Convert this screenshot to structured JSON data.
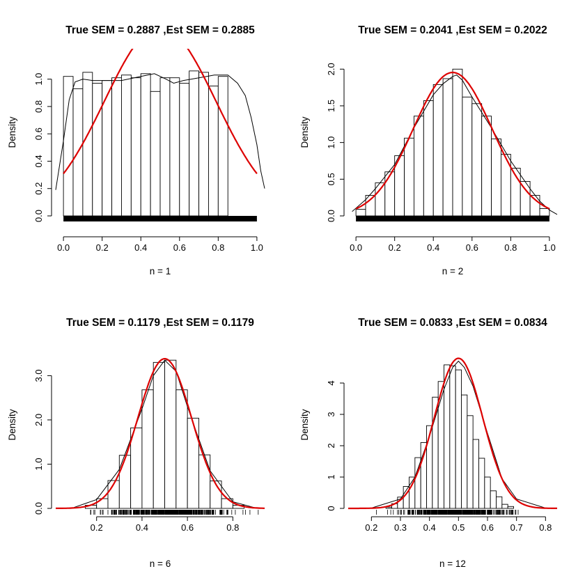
{
  "chart_data": [
    {
      "type": "bar",
      "title": "True SEM = 0.2887 ,Est SEM =  0.2885",
      "xlabel": "n = 1",
      "ylabel": "Density",
      "xlim": [
        -0.04,
        1.04
      ],
      "ylim": [
        0,
        1.1
      ],
      "xticks": [
        "0.0",
        "0.2",
        "0.4",
        "0.6",
        "0.8",
        "1.0"
      ],
      "yticks": [
        "0.0",
        "0.2",
        "0.4",
        "0.6",
        "0.8",
        "1.0"
      ],
      "bins_start": 0.0,
      "bin_width": 0.05,
      "values": [
        1.02,
        0.93,
        1.05,
        0.97,
        0.99,
        1.01,
        1.03,
        1.01,
        1.04,
        0.91,
        1.01,
        1.01,
        0.97,
        1.06,
        1.05,
        0.95,
        1.02
      ],
      "normal_curve": {
        "mean": 0.5,
        "sd": 0.2887,
        "color": "#dd0000"
      },
      "density_curve": {
        "x": [
          -0.04,
          0.0,
          0.03,
          0.06,
          0.1,
          0.15,
          0.2,
          0.3,
          0.4,
          0.47,
          0.53,
          0.57,
          0.62,
          0.7,
          0.78,
          0.85,
          0.9,
          0.94,
          0.97,
          1.0,
          1.02,
          1.04
        ],
        "y": [
          0.19,
          0.55,
          0.85,
          0.98,
          1.0,
          0.99,
          0.99,
          0.99,
          1.02,
          1.04,
          1.0,
          0.97,
          0.99,
          1.01,
          1.03,
          1.03,
          0.97,
          0.88,
          0.72,
          0.52,
          0.33,
          0.2
        ]
      },
      "rug": "dense"
    },
    {
      "type": "bar",
      "title": "True SEM = 0.2041 ,Est SEM =  0.2022",
      "xlabel": "n = 2",
      "ylabel": "Density",
      "xlim": [
        -0.04,
        1.04
      ],
      "ylim": [
        0,
        2.05
      ],
      "xticks": [
        "0.0",
        "0.2",
        "0.4",
        "0.6",
        "0.8",
        "1.0"
      ],
      "yticks": [
        "0.0",
        "0.5",
        "1.0",
        "1.5",
        "2.0"
      ],
      "bins_start": 0.0,
      "bin_width": 0.05,
      "values": [
        0.09,
        0.28,
        0.45,
        0.6,
        0.82,
        1.06,
        1.36,
        1.57,
        1.79,
        1.87,
        2.0,
        1.62,
        1.53,
        1.36,
        1.05,
        0.84,
        0.65,
        0.47,
        0.28,
        0.1
      ],
      "normal_curve": {
        "mean": 0.5,
        "sd": 0.2041,
        "color": "#dd0000"
      },
      "density_curve": {
        "x": [
          -0.02,
          0.05,
          0.1,
          0.2,
          0.3,
          0.4,
          0.45,
          0.5,
          0.52,
          0.55,
          0.6,
          0.7,
          0.8,
          0.9,
          0.95,
          1.0,
          1.04
        ],
        "y": [
          0.06,
          0.22,
          0.37,
          0.7,
          1.2,
          1.65,
          1.8,
          1.9,
          1.92,
          1.85,
          1.62,
          1.2,
          0.75,
          0.37,
          0.2,
          0.08,
          0.02
        ]
      },
      "rug": "dense"
    },
    {
      "type": "bar",
      "title": "True SEM = 0.1179 ,Est SEM =  0.1179",
      "xlabel": "n = 6",
      "ylabel": "Density",
      "xlim": [
        0.02,
        0.94
      ],
      "ylim": [
        0,
        3.4
      ],
      "xticks": [
        "0.2",
        "0.4",
        "0.6",
        "0.8"
      ],
      "yticks": [
        "0.0",
        "1.0",
        "2.0",
        "3.0"
      ],
      "bins_start": 0.15,
      "bin_width": 0.05,
      "values": [
        0.07,
        0.22,
        0.63,
        1.2,
        1.82,
        2.68,
        3.3,
        3.35,
        2.68,
        2.04,
        1.21,
        0.62,
        0.22,
        0.07
      ],
      "normal_curve": {
        "mean": 0.5,
        "sd": 0.1179,
        "color": "#dd0000"
      },
      "density_curve": {
        "x": [
          0.1,
          0.2,
          0.3,
          0.4,
          0.45,
          0.5,
          0.55,
          0.6,
          0.7,
          0.8,
          0.9
        ],
        "y": [
          0.02,
          0.2,
          0.88,
          2.25,
          3.0,
          3.35,
          3.1,
          2.3,
          0.85,
          0.15,
          0.01
        ]
      },
      "rug": "spread"
    },
    {
      "type": "bar",
      "title": "True SEM = 0.0833 ,Est SEM =  0.0834",
      "xlabel": "n = 12",
      "ylabel": "Density",
      "xlim": [
        0.12,
        0.84
      ],
      "ylim": [
        0,
        4.8
      ],
      "xticks": [
        "0.2",
        "0.3",
        "0.4",
        "0.5",
        "0.6",
        "0.7",
        "0.8"
      ],
      "yticks": [
        "0",
        "1",
        "2",
        "3",
        "4"
      ],
      "bins_start": 0.25,
      "bin_width": 0.02,
      "values": [
        0.04,
        0.15,
        0.36,
        0.7,
        1.0,
        1.62,
        2.1,
        2.64,
        3.55,
        4.05,
        4.58,
        4.55,
        4.42,
        3.62,
        2.96,
        2.2,
        1.6,
        1.0,
        0.56,
        0.37,
        0.13,
        0.06
      ],
      "normal_curve": {
        "mean": 0.5,
        "sd": 0.0833,
        "color": "#dd0000"
      },
      "density_curve": {
        "x": [
          0.2,
          0.3,
          0.35,
          0.4,
          0.45,
          0.48,
          0.5,
          0.52,
          0.55,
          0.6,
          0.65,
          0.7,
          0.8
        ],
        "y": [
          0.01,
          0.3,
          1.0,
          2.3,
          3.8,
          4.5,
          4.7,
          4.5,
          3.9,
          2.4,
          0.95,
          0.3,
          0.01
        ]
      },
      "rug": "spread"
    }
  ]
}
